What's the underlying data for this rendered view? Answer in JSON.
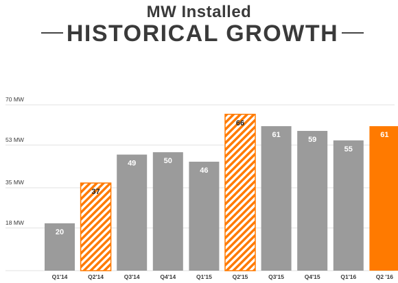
{
  "header": {
    "subtitle": "MW Installed",
    "title": "HISTORICAL GROWTH"
  },
  "colors": {
    "gray_bar": "#9b9b9b",
    "accent": "#ff7a00",
    "grid": "#e2e2e2",
    "text": "#3a3a3a"
  },
  "chart_data": {
    "type": "bar",
    "categories": [
      "Q1'14",
      "Q2'14",
      "Q3'14",
      "Q4'14",
      "Q1'15",
      "Q2'15",
      "Q3'15",
      "Q4'15",
      "Q1'16",
      "Q2 '16"
    ],
    "values": [
      20,
      37,
      49,
      50,
      46,
      66,
      61,
      59,
      55,
      61
    ],
    "value_labels": [
      "20",
      "37",
      "49",
      "50",
      "46",
      "66",
      "61",
      "59",
      "55",
      "61"
    ],
    "styles": [
      "gray",
      "hatched",
      "gray",
      "gray",
      "gray",
      "hatched",
      "gray",
      "gray",
      "gray",
      "orange"
    ],
    "yticks": [
      18,
      35,
      53,
      70
    ],
    "ytick_labels": [
      "18 MW",
      "35 MW",
      "53 MW",
      "70 MW"
    ],
    "ylim": [
      0,
      70
    ],
    "grid": true
  }
}
